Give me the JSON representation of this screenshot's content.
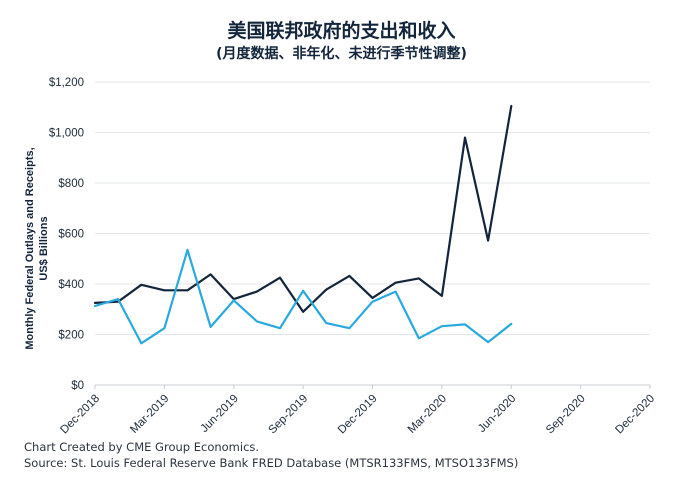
{
  "header": {
    "title": "美国联邦政府的支出和收入",
    "subtitle": "(月度数据、非年化、未进行季节性调整)"
  },
  "footer": {
    "line1": "Chart Created by CME Group Economics.",
    "line2": "Source: St. Louis Federal Reserve Bank FRED Database (MTSR133FMS, MTSO133FMS)"
  },
  "colors": {
    "outlays": "#13253a",
    "receipts": "#29a9df",
    "grid": "#e3e6ea",
    "text": "#1b2a3a"
  },
  "chart_data": {
    "type": "line",
    "ylabel": "Monthly Federal Outlays and Receipts, US$ Billions",
    "ylim": [
      0,
      1200
    ],
    "yticks": [
      "$0",
      "$200",
      "$400",
      "$600",
      "$800",
      "$1,000",
      "$1,200"
    ],
    "xlim": [
      "2018-12",
      "2020-12"
    ],
    "xticks": [
      "Dec-2018",
      "Mar-2019",
      "Jun-2019",
      "Sep-2019",
      "Dec-2019",
      "Mar-2020",
      "Jun-2020",
      "Sep-2020",
      "Dec-2020"
    ],
    "grid": true,
    "legend": "none",
    "x": [
      "2018-12",
      "2019-01",
      "2019-02",
      "2019-03",
      "2019-04",
      "2019-05",
      "2019-06",
      "2019-07",
      "2019-08",
      "2019-09",
      "2019-10",
      "2019-11",
      "2019-12",
      "2020-01",
      "2020-02",
      "2020-03",
      "2020-04",
      "2020-05",
      "2020-06"
    ],
    "series": [
      {
        "color": "#13253a",
        "values": [
          325,
          330,
          397,
          375,
          375,
          438,
          340,
          370,
          425,
          290,
          378,
          432,
          345,
          405,
          422,
          353,
          980,
          572,
          1105
        ]
      },
      {
        "color": "#29a9df",
        "values": [
          313,
          340,
          165,
          225,
          535,
          230,
          335,
          252,
          225,
          373,
          245,
          225,
          330,
          370,
          185,
          233,
          240,
          170,
          242
        ]
      }
    ]
  }
}
